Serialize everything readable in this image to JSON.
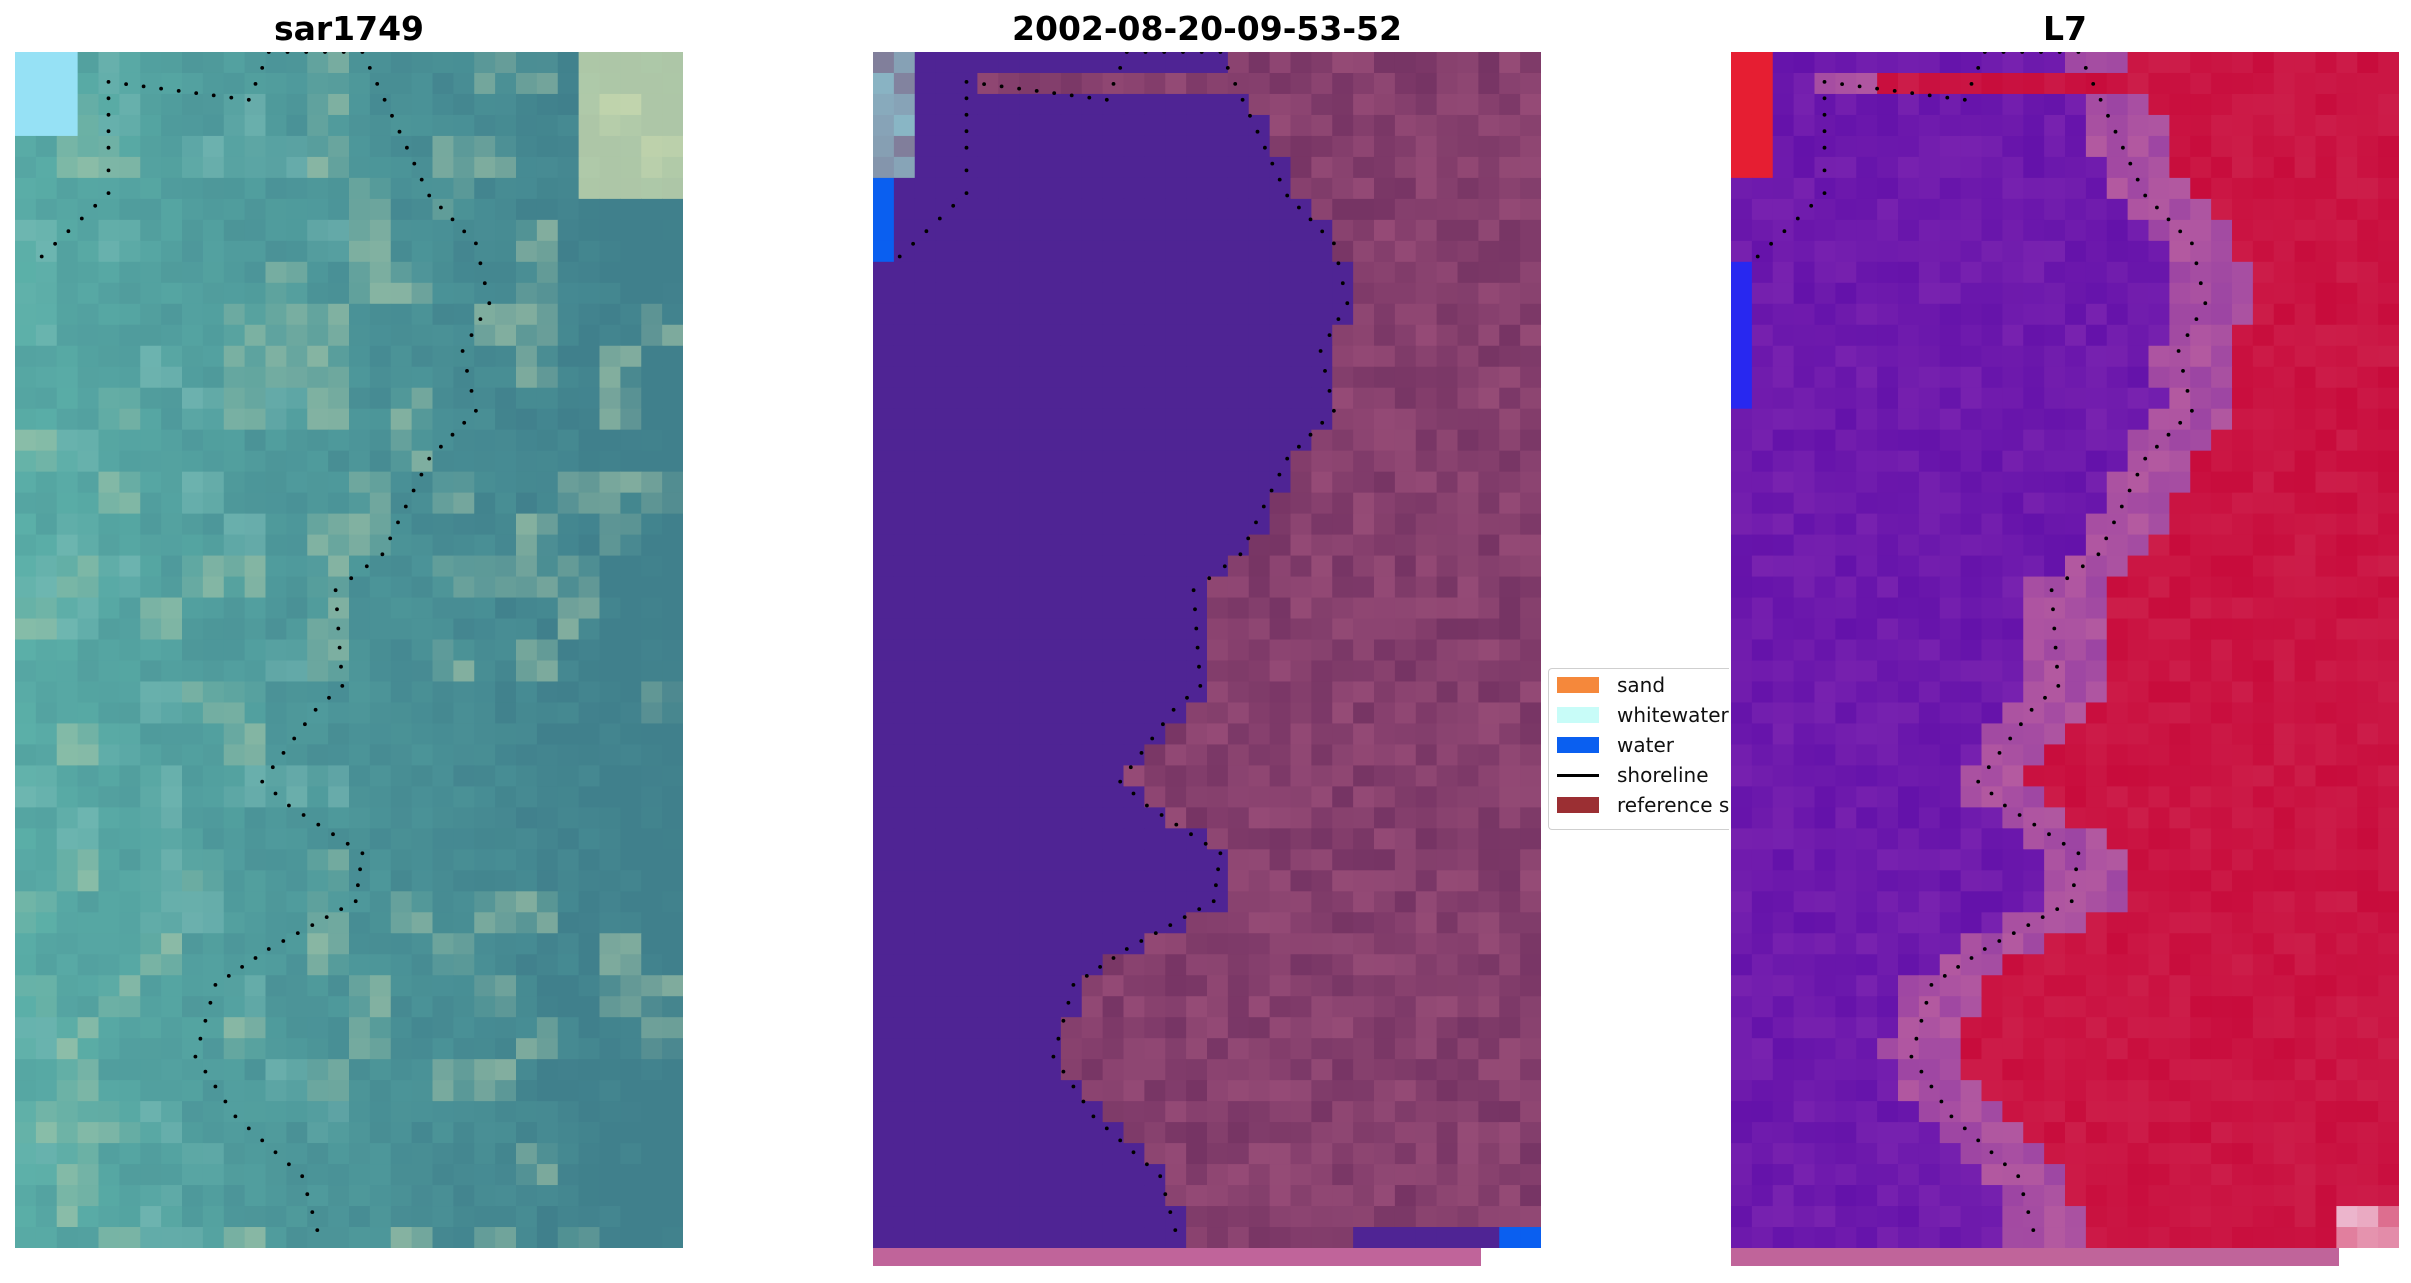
{
  "panels": [
    {
      "title": "sar1749",
      "mode": "rgb"
    },
    {
      "title": "2002-08-20-09-53-52",
      "mode": "classified"
    },
    {
      "title": "L7",
      "mode": "mndwi"
    }
  ],
  "legend": {
    "items": [
      {
        "label": "sand",
        "kind": "patch",
        "color": "#f5883b"
      },
      {
        "label": "whitewater",
        "kind": "patch",
        "color": "#c8fcf8"
      },
      {
        "label": "water",
        "kind": "patch",
        "color": "#0a5ff0"
      },
      {
        "label": "shoreline",
        "kind": "line",
        "color": "#000000"
      },
      {
        "label": "reference s",
        "kind": "patch",
        "color": "#9b2f33"
      }
    ]
  },
  "colors": {
    "water_class": "#4f2494",
    "land_overlay": "#7a3464",
    "bottom_strip": "#c0649a",
    "shoreline_dots": "#000000"
  }
}
